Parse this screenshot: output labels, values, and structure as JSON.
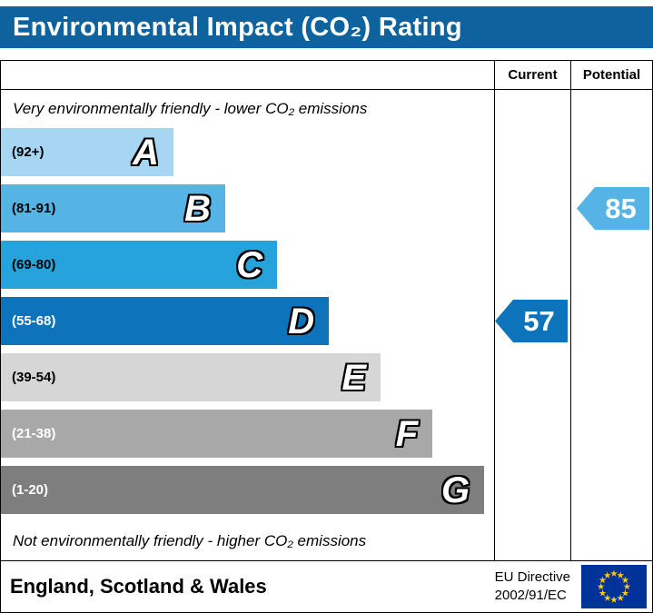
{
  "header": {
    "title": "Environmental Impact (CO₂) Rating",
    "bg_color": "#0e639e"
  },
  "columns": {
    "current": "Current",
    "potential": "Potential"
  },
  "notes": {
    "top": "Very environmentally friendly - lower CO₂ emissions",
    "bottom": "Not environmentally friendly - higher CO₂ emissions"
  },
  "chart_data": {
    "type": "bar",
    "title": "Environmental Impact (CO₂) Rating",
    "categories": [
      "A",
      "B",
      "C",
      "D",
      "E",
      "F",
      "G"
    ],
    "bands": [
      {
        "letter": "A",
        "range": "(92+)",
        "score_range": "92+",
        "color": "#a6d6f1",
        "width_pct": 35,
        "label_color": "#000000"
      },
      {
        "letter": "B",
        "range": "(81-91)",
        "score_range": "81-91",
        "color": "#55b4e4",
        "width_pct": 45.5,
        "label_color": "#000000"
      },
      {
        "letter": "C",
        "range": "(69-80)",
        "score_range": "69-80",
        "color": "#27a3dc",
        "width_pct": 56,
        "label_color": "#000000"
      },
      {
        "letter": "D",
        "range": "(55-68)",
        "score_range": "55-68",
        "color": "#0d73ba",
        "width_pct": 66.5,
        "label_color": "#ffffff"
      },
      {
        "letter": "E",
        "range": "(39-54)",
        "score_range": "39-54",
        "color": "#d6d6d6",
        "width_pct": 77,
        "label_color": "#000000"
      },
      {
        "letter": "F",
        "range": "(21-38)",
        "score_range": "21-38",
        "color": "#a8a8a8",
        "width_pct": 87.5,
        "label_color": "#ffffff"
      },
      {
        "letter": "G",
        "range": "(1-20)",
        "score_range": "1-20",
        "color": "#7e7e7e",
        "width_pct": 98,
        "label_color": "#ffffff"
      }
    ],
    "current": {
      "value": "57",
      "band": "D",
      "band_index": 3,
      "color": "#0d73ba"
    },
    "potential": {
      "value": "85",
      "band": "B",
      "band_index": 1,
      "color": "#55b4e4"
    }
  },
  "footer": {
    "region": "England, Scotland & Wales",
    "directive": [
      "EU Directive",
      "2002/91/EC"
    ],
    "eu_flag": {
      "bg": "#003399",
      "star": "#ffcc00"
    }
  }
}
